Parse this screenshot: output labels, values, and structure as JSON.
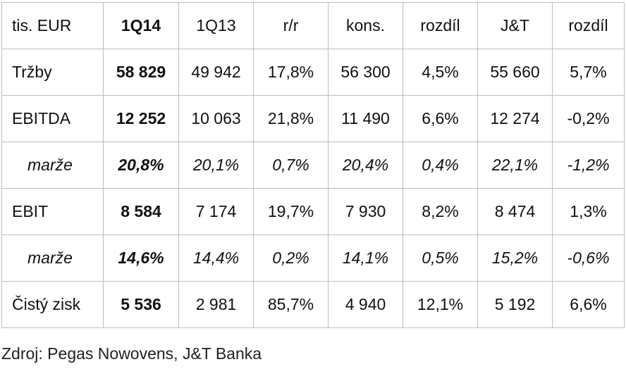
{
  "table": {
    "headers": [
      "tis. EUR",
      "1Q14",
      "1Q13",
      "r/r",
      "kons.",
      "rozdíl",
      "J&T",
      "rozdíl"
    ],
    "rows": [
      {
        "label": "Tržby",
        "cells": [
          "58 829",
          "49 942",
          "17,8%",
          "56 300",
          "4,5%",
          "55 660",
          "5,7%"
        ]
      },
      {
        "label": "EBITDA",
        "cells": [
          "12 252",
          "10 063",
          "21,8%",
          "11 490",
          "6,6%",
          "12 274",
          "-0,2%"
        ]
      },
      {
        "label": "marže",
        "cells": [
          "20,8%",
          "20,1%",
          "0,7%",
          "20,4%",
          "0,4%",
          "22,1%",
          "-1,2%"
        ]
      },
      {
        "label": "EBIT",
        "cells": [
          "8 584",
          "7 174",
          "19,7%",
          "7 930",
          "8,2%",
          "8 474",
          "1,3%"
        ]
      },
      {
        "label": "marže",
        "cells": [
          "14,6%",
          "14,4%",
          "0,2%",
          "14,1%",
          "0,5%",
          "15,2%",
          "-0,6%"
        ]
      },
      {
        "label": "Čistý zisk",
        "cells": [
          "5 536",
          "2 981",
          "85,7%",
          "4 940",
          "12,1%",
          "5 192",
          "6,6%"
        ]
      }
    ]
  },
  "source": "Zdroj: Pegas Nowovens, J&T Banka",
  "colors": {
    "border": "#bdbdbd",
    "text": "#111111",
    "background": "#ffffff"
  }
}
